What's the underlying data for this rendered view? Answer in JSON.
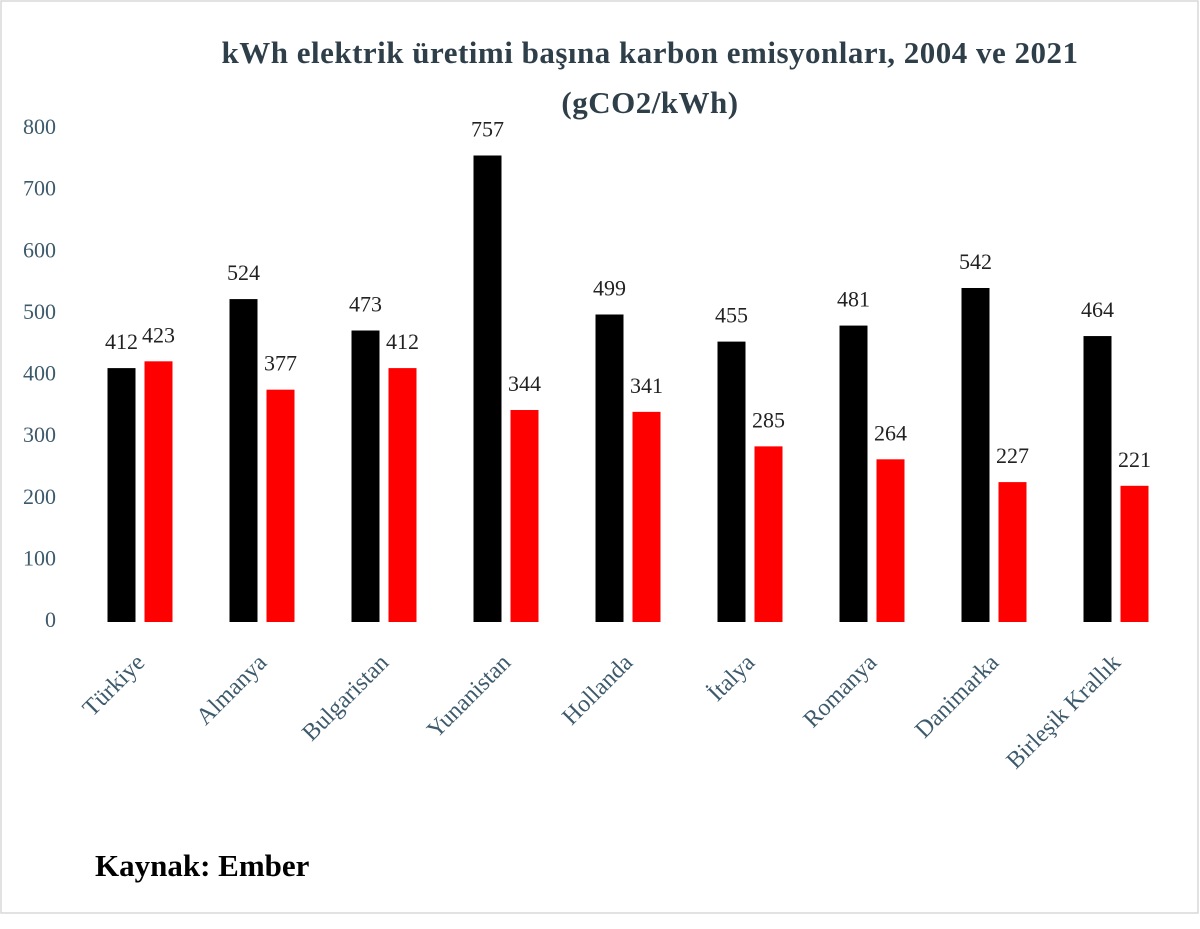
{
  "chart_data": {
    "type": "bar",
    "title": "kWh elektrik üretimi başına karbon emisyonları, 2004 ve 2021 (gCO2/kWh)",
    "source": "Kaynak: Ember",
    "categories": [
      "Türkiye",
      "Almanya",
      "Bulgaristan",
      "Yunanistan",
      "Hollanda",
      "İtalya",
      "Romanya",
      "Danimarka",
      "Birleşik Krallık"
    ],
    "series": [
      {
        "color": "#000000",
        "values": [
          412,
          524,
          473,
          757,
          499,
          455,
          481,
          542,
          464
        ]
      },
      {
        "color": "#ff0000",
        "values": [
          423,
          377,
          412,
          344,
          341,
          285,
          264,
          227,
          221
        ]
      }
    ],
    "ylim": [
      0,
      800
    ],
    "yticks": [
      0,
      100,
      200,
      300,
      400,
      500,
      600,
      700,
      800
    ],
    "grid": false
  }
}
